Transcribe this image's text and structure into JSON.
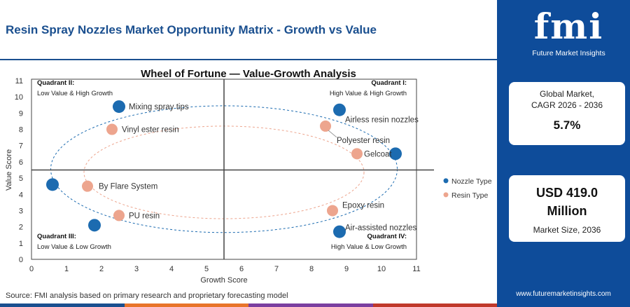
{
  "header": {
    "title": "Resin Spray Nozzles Market Opportunity Matrix - Growth vs Value"
  },
  "chart_data": {
    "type": "scatter",
    "title": "Wheel of Fortune — Value-Growth Analysis",
    "xlabel": "Growth Score",
    "ylabel": "Value Score",
    "xlim": [
      0,
      11
    ],
    "ylim": [
      0,
      11
    ],
    "xticks": [
      "0",
      "1",
      "2",
      "3",
      "4",
      "5",
      "6",
      "7",
      "8",
      "9",
      "10",
      "11"
    ],
    "yticks": [
      "0",
      "1",
      "2",
      "3",
      "4",
      "5",
      "6",
      "7",
      "8",
      "9",
      "10",
      "11"
    ],
    "divider": {
      "x": 5.5,
      "y": 5.5
    },
    "quadrants": [
      {
        "title": "Quadrant II:",
        "desc": "Low Value & High Growth"
      },
      {
        "title": "Quadrant I:",
        "desc": "High Value & High Growth"
      },
      {
        "title": "Quadrant III:",
        "desc": "Low Value & Low Growth"
      },
      {
        "title": "Quadrant IV:",
        "desc": "High Value & Low Growth"
      }
    ],
    "legend_position": "right",
    "series": [
      {
        "name": "Nozzle Type",
        "color": "#1c6bb0",
        "points": [
          {
            "label": "Mixing spray tips",
            "x": 2.5,
            "y": 9.4
          },
          {
            "label": "Airless resin nozzles",
            "x": 8.8,
            "y": 9.2
          },
          {
            "label": "",
            "x": 10.4,
            "y": 6.5
          },
          {
            "label": "",
            "x": 0.6,
            "y": 4.6
          },
          {
            "label": "",
            "x": 1.8,
            "y": 2.1
          },
          {
            "label": "Air-assisted nozzles",
            "x": 8.8,
            "y": 1.7
          }
        ]
      },
      {
        "name": "Resin Type",
        "color": "#eda58e",
        "points": [
          {
            "label": "Vinyl ester resin",
            "x": 2.3,
            "y": 8.0
          },
          {
            "label": "Polyester resin",
            "x": 8.4,
            "y": 8.2
          },
          {
            "label": "Gelcoat",
            "x": 9.3,
            "y": 6.5
          },
          {
            "label": "By Flare System",
            "x": 1.6,
            "y": 4.5
          },
          {
            "label": "PU resin",
            "x": 2.5,
            "y": 2.7
          },
          {
            "label": "Epoxy resin",
            "x": 8.6,
            "y": 3.0
          }
        ]
      }
    ]
  },
  "source": "Source: FMI analysis based on primary research and proprietary forecasting model",
  "panel": {
    "logo": "fmi",
    "logo_sub": "Future Market Insights",
    "cagr_label_1": "Global Market,",
    "cagr_label_2": "CAGR 2026 - 2036",
    "cagr_value": "5.7%",
    "size_value_1": "USD 419.0",
    "size_value_2": "Million",
    "size_label": "Market Size, 2036",
    "website": "www.futuremarketinsights.com"
  },
  "colors": {
    "brand": "#0e4c9a",
    "bottom_bar": [
      "#1a4f8f",
      "#e8742a",
      "#7b3fa0",
      "#c0392b"
    ]
  }
}
